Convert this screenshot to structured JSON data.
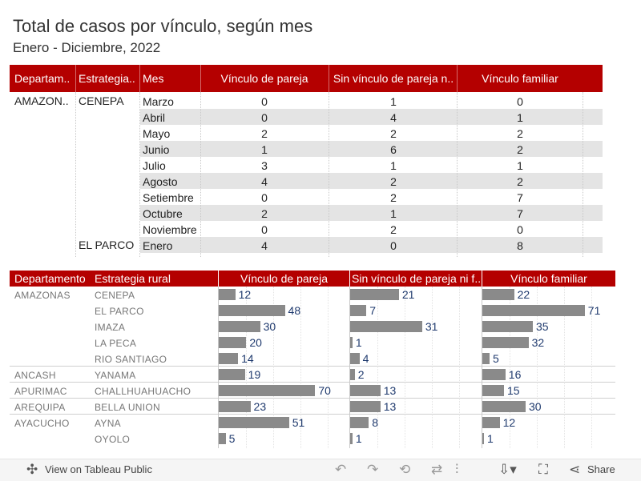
{
  "title": "Total de casos por vínculo, según mes",
  "subtitle": "Enero - Diciembre, 2022",
  "colors": {
    "header": "#b40000",
    "bar": "#8a8a8a",
    "label": "#1f3a6e",
    "stripe": "#e4e4e4"
  },
  "table": {
    "headers": [
      "Departam..",
      "Estrategia..",
      "Mes",
      "Vínculo de pareja",
      "Sin vínculo de pareja n..",
      "Vínculo familiar"
    ],
    "groups": [
      {
        "departamento": "AMAZON..",
        "estrategia": "CENEPA",
        "row_start": 0
      },
      {
        "departamento": "",
        "estrategia": "EL PARCO",
        "row_start": 9
      }
    ],
    "rows": [
      {
        "mes": "Marzo",
        "pareja": "0",
        "sin_pareja": "1",
        "familiar": "0"
      },
      {
        "mes": "Abril",
        "pareja": "0",
        "sin_pareja": "4",
        "familiar": "1"
      },
      {
        "mes": "Mayo",
        "pareja": "2",
        "sin_pareja": "2",
        "familiar": "2"
      },
      {
        "mes": "Junio",
        "pareja": "1",
        "sin_pareja": "6",
        "familiar": "2"
      },
      {
        "mes": "Julio",
        "pareja": "3",
        "sin_pareja": "1",
        "familiar": "1"
      },
      {
        "mes": "Agosto",
        "pareja": "4",
        "sin_pareja": "2",
        "familiar": "2"
      },
      {
        "mes": "Setiembre",
        "pareja": "0",
        "sin_pareja": "2",
        "familiar": "7"
      },
      {
        "mes": "Octubre",
        "pareja": "2",
        "sin_pareja": "1",
        "familiar": "7"
      },
      {
        "mes": "Noviembre",
        "pareja": "0",
        "sin_pareja": "2",
        "familiar": "0"
      },
      {
        "mes": "Enero",
        "pareja": "4",
        "sin_pareja": "0",
        "familiar": "8"
      }
    ]
  },
  "chart_data": {
    "type": "bar",
    "headers": [
      "Departamento",
      "Estrategia rural",
      "Vínculo de pareja",
      "Sin vínculo de pareja ni f..",
      "Vínculo familiar"
    ],
    "categories": [
      {
        "departamento": "AMAZONAS",
        "estrategia": "CENEPA"
      },
      {
        "departamento": "",
        "estrategia": "EL PARCO"
      },
      {
        "departamento": "",
        "estrategia": "IMAZA"
      },
      {
        "departamento": "",
        "estrategia": "LA PECA"
      },
      {
        "departamento": "",
        "estrategia": "RIO SANTIAGO"
      },
      {
        "departamento": "ANCASH",
        "estrategia": "YANAMA"
      },
      {
        "departamento": "APURIMAC",
        "estrategia": "CHALLHUAHUACHO"
      },
      {
        "departamento": "AREQUIPA",
        "estrategia": "BELLA UNION"
      },
      {
        "departamento": "AYACUCHO",
        "estrategia": "AYNA"
      },
      {
        "departamento": "",
        "estrategia": "OYOLO"
      }
    ],
    "series": [
      {
        "name": "Vínculo de pareja",
        "values": [
          12,
          48,
          30,
          20,
          14,
          19,
          70,
          23,
          51,
          5
        ]
      },
      {
        "name": "Sin vínculo de pareja ni familiar",
        "values": [
          21,
          7,
          31,
          1,
          4,
          2,
          13,
          13,
          8,
          1
        ]
      },
      {
        "name": "Vínculo familiar",
        "values": [
          22,
          71,
          35,
          32,
          5,
          16,
          15,
          30,
          12,
          1
        ]
      }
    ],
    "group_separators_after": [
      4,
      5,
      6,
      7
    ]
  },
  "toolbar": {
    "view_label": "View on Tableau Public",
    "share_label": "Share"
  }
}
